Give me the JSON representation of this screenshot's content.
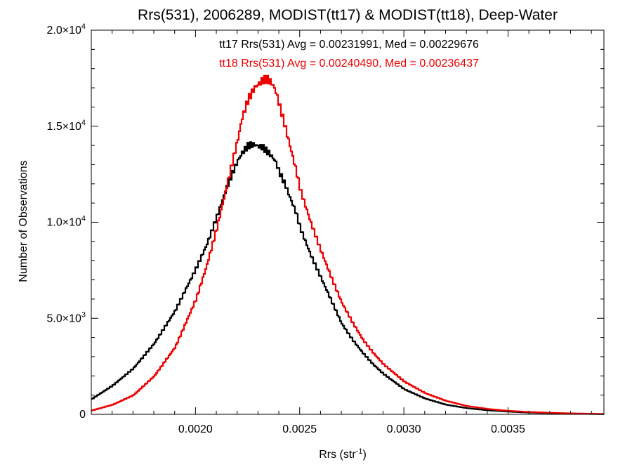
{
  "chart_data": {
    "type": "line",
    "title": "Rrs(531), 2006289, MODIST(tt17) & MODIST(tt18), Deep-Water",
    "xlabel": "Rrs (str",
    "xlabel_exponent": "-1",
    "xlabel_suffix": ")",
    "ylabel": "Number of Observations",
    "xlim": [
      0.0015,
      0.00396
    ],
    "ylim": [
      0,
      20000
    ],
    "step": true,
    "grid": false,
    "legend_position": "top-center",
    "x_ticks": [
      {
        "value": 0.002,
        "label": "0.0020"
      },
      {
        "value": 0.0025,
        "label": "0.0025"
      },
      {
        "value": 0.003,
        "label": "0.0030"
      },
      {
        "value": 0.0035,
        "label": "0.0035"
      }
    ],
    "y_ticks": [
      {
        "value": 0,
        "label": "0"
      },
      {
        "value": 5000,
        "mantissa": "5.0×10",
        "exponent": "3"
      },
      {
        "value": 10000,
        "mantissa": "1.0×10",
        "exponent": "4"
      },
      {
        "value": 15000,
        "mantissa": "1.5×10",
        "exponent": "4"
      },
      {
        "value": 20000,
        "mantissa": "2.0×10",
        "exponent": "4"
      }
    ],
    "annotations": [
      {
        "text": "tt17 Rrs(531) Avg = 0.00231991, Med = 0.00229676",
        "color": "#000000"
      },
      {
        "text": "tt18 Rrs(531) Avg = 0.00240490, Med = 0.00236437",
        "color": "#ee0000"
      }
    ],
    "series": [
      {
        "color": "#000000",
        "x": [
          0.0015,
          0.0016,
          0.0017,
          0.0018,
          0.0019,
          0.002,
          0.00205,
          0.0021,
          0.00215,
          0.00218,
          0.0022,
          0.00222,
          0.00225,
          0.00228,
          0.0023,
          0.00232,
          0.00235,
          0.00238,
          0.0024,
          0.00243,
          0.00245,
          0.00248,
          0.0025,
          0.00255,
          0.0026,
          0.00265,
          0.0027,
          0.00275,
          0.0028,
          0.00285,
          0.0029,
          0.003,
          0.0031,
          0.0032,
          0.0033,
          0.0034,
          0.0035,
          0.0036,
          0.0037,
          0.0038,
          0.0039,
          0.00396
        ],
        "y": [
          800,
          1500,
          2400,
          3700,
          5400,
          7600,
          8800,
          10300,
          11900,
          12700,
          13200,
          13600,
          14000,
          14050,
          13950,
          13900,
          13600,
          13200,
          12600,
          11900,
          11300,
          10500,
          9700,
          8300,
          7100,
          5900,
          4700,
          3900,
          3200,
          2600,
          2100,
          1300,
          820,
          500,
          320,
          210,
          140,
          90,
          60,
          40,
          20,
          10
        ]
      },
      {
        "color": "#ee0000",
        "x": [
          0.0015,
          0.0016,
          0.0017,
          0.0018,
          0.0019,
          0.002,
          0.00205,
          0.0021,
          0.00215,
          0.00218,
          0.0022,
          0.00222,
          0.00225,
          0.00228,
          0.0023,
          0.00232,
          0.00234,
          0.00236,
          0.00238,
          0.0024,
          0.00242,
          0.00245,
          0.00248,
          0.0025,
          0.00255,
          0.0026,
          0.00265,
          0.0027,
          0.00275,
          0.0028,
          0.00285,
          0.0029,
          0.003,
          0.0031,
          0.0032,
          0.0033,
          0.0034,
          0.0035,
          0.0036,
          0.0037,
          0.0038,
          0.0039,
          0.00396
        ],
        "y": [
          200,
          500,
          1000,
          2000,
          3500,
          6000,
          7700,
          9700,
          12000,
          13400,
          14300,
          15400,
          16400,
          17000,
          17200,
          17400,
          17450,
          17300,
          16900,
          16100,
          15300,
          14000,
          12700,
          11700,
          10000,
          8500,
          7100,
          5800,
          4800,
          3900,
          3200,
          2600,
          1700,
          1100,
          700,
          430,
          280,
          180,
          120,
          80,
          50,
          30,
          20
        ]
      }
    ]
  }
}
